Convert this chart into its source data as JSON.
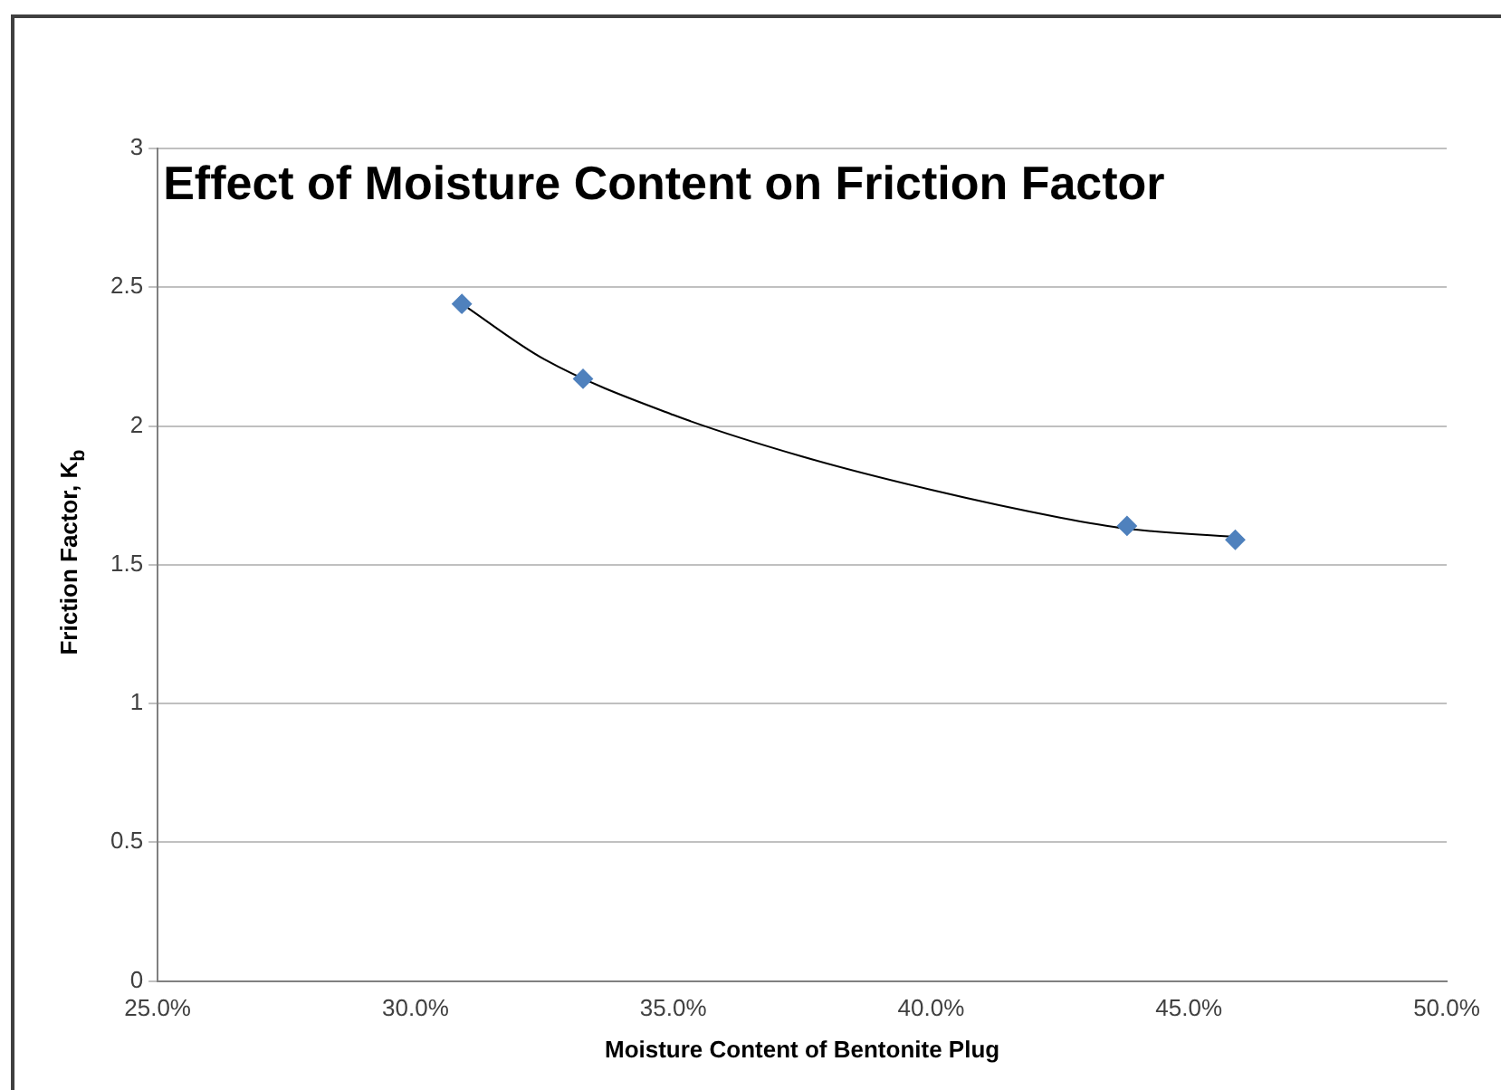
{
  "chart_data": {
    "type": "scatter",
    "title": "Effect of Moisture Content on Friction Factor",
    "xlabel": "Moisture Content of Bentonite Plug",
    "ylabel": "Friction Factor, K$_{b}$",
    "series": [
      {
        "type": "scatter",
        "color": "#4f81bd",
        "x": [
          30.9,
          33.25,
          43.8,
          45.9
        ],
        "values": [
          2.44,
          2.17,
          1.64,
          1.59
        ],
        "marker": "diamond"
      },
      {
        "type": "line",
        "color": "#000000",
        "x": [
          30.9,
          32.5,
          35,
          37.5,
          40,
          42.5,
          43.8,
          45.9
        ],
        "values": [
          2.44,
          2.24,
          2.04,
          1.89,
          1.77,
          1.67,
          1.63,
          1.6
        ],
        "marker": "none"
      }
    ],
    "xlim": [
      25,
      50
    ],
    "xticks": [
      {
        "value": 25,
        "label": "25.0%"
      },
      {
        "value": 30,
        "label": "30.0%"
      },
      {
        "value": 35,
        "label": "35.0%"
      },
      {
        "value": 40,
        "label": "40.0%"
      },
      {
        "value": 45,
        "label": "45.0%"
      },
      {
        "value": 50,
        "label": "50.0%"
      }
    ],
    "ylim": [
      0,
      3
    ],
    "yticks": [
      0,
      0.5,
      1,
      1.5,
      2,
      2.5,
      3
    ],
    "grid": "y",
    "legend": false
  }
}
